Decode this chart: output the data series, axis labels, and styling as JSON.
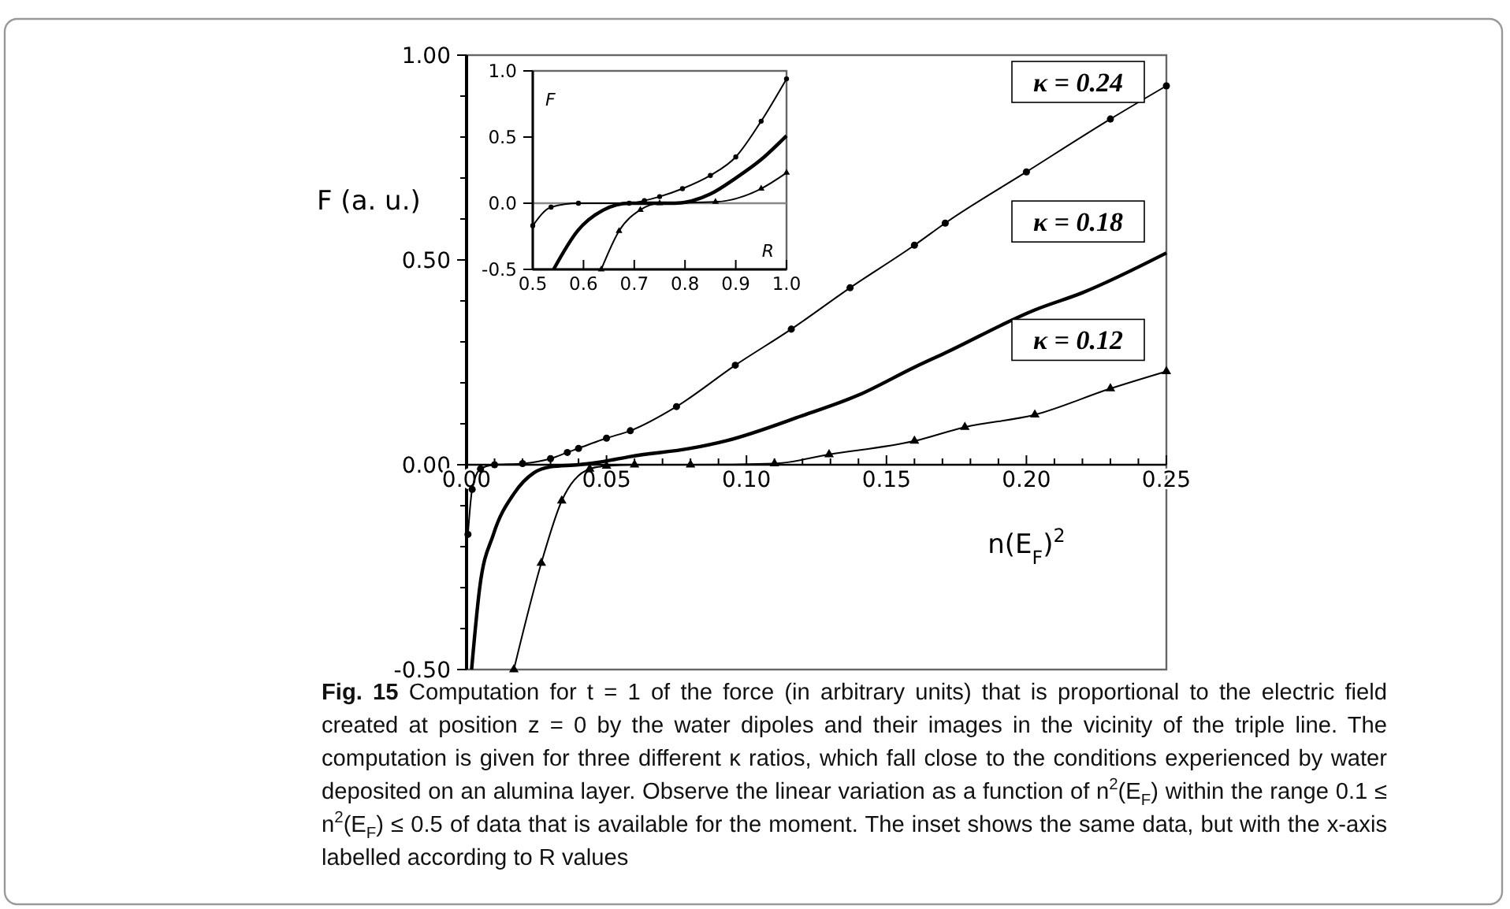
{
  "chart_data": [
    {
      "type": "line",
      "title": "Fig. 15",
      "xlabel": "n(E$_{F}$)$^{2}$",
      "ylabel": "F (a. u.)",
      "xlim": [
        0,
        0.25
      ],
      "ylim": [
        -0.5,
        1
      ],
      "xticks": [
        {
          "value": 0,
          "label": "0.00"
        },
        {
          "value": 0.01,
          "label": null
        },
        {
          "value": 0.02,
          "label": null
        },
        {
          "value": 0.03,
          "label": null
        },
        {
          "value": 0.04,
          "label": null
        },
        {
          "value": 0.05,
          "label": "0.05"
        },
        {
          "value": 0.06,
          "label": null
        },
        {
          "value": 0.07,
          "label": null
        },
        {
          "value": 0.08,
          "label": null
        },
        {
          "value": 0.09,
          "label": null
        },
        {
          "value": 0.1,
          "label": "0.10"
        },
        {
          "value": 0.11,
          "label": null
        },
        {
          "value": 0.12,
          "label": null
        },
        {
          "value": 0.13,
          "label": null
        },
        {
          "value": 0.14,
          "label": null
        },
        {
          "value": 0.15,
          "label": "0.15"
        },
        {
          "value": 0.16,
          "label": null
        },
        {
          "value": 0.17,
          "label": null
        },
        {
          "value": 0.18,
          "label": null
        },
        {
          "value": 0.19,
          "label": null
        },
        {
          "value": 0.2,
          "label": "0.20"
        },
        {
          "value": 0.21,
          "label": null
        },
        {
          "value": 0.22,
          "label": null
        },
        {
          "value": 0.23,
          "label": null
        },
        {
          "value": 0.24,
          "label": null
        },
        {
          "value": 0.25,
          "label": "0.25"
        }
      ],
      "yticks": [
        {
          "value": -0.5,
          "label": "-0.50"
        },
        {
          "value": -0.4,
          "label": null
        },
        {
          "value": -0.3,
          "label": null
        },
        {
          "value": -0.2,
          "label": null
        },
        {
          "value": -0.1,
          "label": null
        },
        {
          "value": 0,
          "label": "0.00"
        },
        {
          "value": 0.1,
          "label": null
        },
        {
          "value": 0.2,
          "label": null
        },
        {
          "value": 0.3,
          "label": null
        },
        {
          "value": 0.4,
          "label": null
        },
        {
          "value": 0.5,
          "label": "0.50"
        },
        {
          "value": 0.6,
          "label": null
        },
        {
          "value": 0.7,
          "label": null
        },
        {
          "value": 0.8,
          "label": null
        },
        {
          "value": 0.9,
          "label": null
        },
        {
          "value": 1,
          "label": "1.00"
        }
      ],
      "series": [
        {
          "name": "κ = 0.24",
          "color": "#000000",
          "marker": "circle",
          "line_style": "solid",
          "x": [
            0.0005,
            0.002,
            0.005,
            0.01,
            0.02,
            0.03,
            0.036,
            0.04,
            0.05,
            0.0585,
            0.075,
            0.096,
            0.116,
            0.137,
            0.16,
            0.171,
            0.2,
            0.23,
            0.25
          ],
          "values": [
            -0.17,
            -0.06,
            -0.01,
            0,
            0.003,
            0.015,
            0.03,
            0.04,
            0.065,
            0.083,
            0.142,
            0.243,
            0.331,
            0.432,
            0.536,
            0.59,
            0.715,
            0.844,
            0.925
          ]
        },
        {
          "name": "κ = 0.18",
          "color": "#000000",
          "marker": "none",
          "line_style": "solid",
          "x": [
            0.0018,
            0.0047,
            0.0096,
            0.017,
            0.024,
            0.03,
            0.04,
            0.049,
            0.0585,
            0.08,
            0.093,
            0.12,
            0.14,
            0.16,
            0.171,
            0.203,
            0.22,
            0.25
          ],
          "values": [
            -0.5,
            -0.3,
            -0.17,
            -0.07,
            -0.02,
            -0.005,
            0,
            0.008,
            0.02,
            0.04,
            0.059,
            0.12,
            0.17,
            0.238,
            0.273,
            0.378,
            0.42,
            0.517
          ]
        },
        {
          "name": "κ = 0.12",
          "color": "#000000",
          "marker": "triangle",
          "line_style": "solid",
          "x": [
            0.0169,
            0.0267,
            0.034,
            0.044,
            0.05,
            0.06,
            0.08,
            0.11,
            0.1295,
            0.16,
            0.178,
            0.203,
            0.23,
            0.25
          ],
          "values": [
            -0.5,
            -0.24,
            -0.088,
            -0.01,
            -0.003,
            0,
            0,
            0.003,
            0.025,
            0.058,
            0.092,
            0.122,
            0.186,
            0.228
          ]
        }
      ],
      "annotations": [
        "Computation for t = 1 of the force (in arbitrary units) that is proportional to the electric field created at position z = 0 by the water dipoles and their images in the vicinity of the triple line. The computation is given for three different κ ratios, which fall close to the conditions experienced by water deposited on an alumina layer. Observe the linear variation as a function of n$^{2}$(E$_{F}$) within the range 0.1 ≤ n$^{2}$(E$_{F}$) ≤ 0.5 of data that is available for the moment. The inset shows the same data, but with the x-axis labelled according to R values"
      ]
    },
    {
      "type": "line",
      "xlabel": "R",
      "ylabel": "F",
      "xlim": [
        0.5,
        1
      ],
      "ylim": [
        -0.5,
        1
      ],
      "xticks": [
        {
          "value": 0.5,
          "label": "0.5"
        },
        {
          "value": 0.6,
          "label": "0.6"
        },
        {
          "value": 0.7,
          "label": "0.7"
        },
        {
          "value": 0.8,
          "label": "0.8"
        },
        {
          "value": 0.9,
          "label": "0.9"
        },
        {
          "value": 1,
          "label": "1.0"
        }
      ],
      "yticks": [
        {
          "value": -0.5,
          "label": "-0.5"
        },
        {
          "value": 0,
          "label": "0.0"
        },
        {
          "value": 0.5,
          "label": "0.5"
        },
        {
          "value": 1,
          "label": "1.0"
        }
      ],
      "ref_lines": [
        {
          "axis": "y",
          "value": 0,
          "color": "#888888"
        }
      ],
      "series": [
        {
          "color": "#000000",
          "marker": "circle",
          "line_style": "solid",
          "x": [
            0.5,
            0.536,
            0.59,
            0.69,
            0.72,
            0.75,
            0.795,
            0.85,
            0.9,
            0.95,
            1
          ],
          "values": [
            -0.17,
            -0.03,
            0,
            0,
            0.02,
            0.05,
            0.11,
            0.21,
            0.35,
            0.62,
            0.94
          ]
        },
        {
          "color": "#000000",
          "marker": "none",
          "line_style": "solid",
          "x": [
            0.541,
            0.588,
            0.64,
            0.69,
            0.78,
            0.85,
            0.9,
            0.95,
            1
          ],
          "values": [
            -0.5,
            -0.21,
            -0.05,
            0,
            0,
            0.07,
            0.19,
            0.33,
            0.51
          ]
        },
        {
          "color": "#000000",
          "marker": "triangle",
          "line_style": "solid",
          "x": [
            0.635,
            0.67,
            0.712,
            0.75,
            0.86,
            0.95,
            1
          ],
          "values": [
            -0.5,
            -0.21,
            -0.05,
            0,
            0.01,
            0.11,
            0.23
          ]
        }
      ]
    }
  ]
}
